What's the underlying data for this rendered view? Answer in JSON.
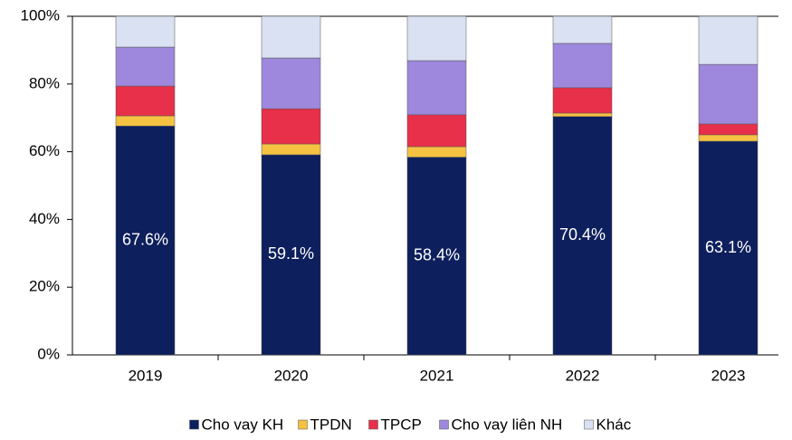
{
  "chart_data": {
    "type": "stacked_bar",
    "categories": [
      "2019",
      "2020",
      "2021",
      "2022",
      "2023"
    ],
    "series": [
      {
        "name": "Cho vay KH",
        "color": "#0d1f5c",
        "values": [
          67.6,
          59.1,
          58.4,
          70.4,
          63.1
        ],
        "value_labels": [
          "67.6%",
          "59.1%",
          "58.4%",
          "70.4%",
          "63.1%"
        ]
      },
      {
        "name": "TPDN",
        "color": "#f5c242",
        "values": [
          3.0,
          3.2,
          3.1,
          1.0,
          1.9
        ]
      },
      {
        "name": "TPCP",
        "color": "#e8304a",
        "values": [
          8.8,
          10.4,
          9.4,
          7.5,
          3.2
        ]
      },
      {
        "name": "Cho vay liên NH",
        "color": "#9e88dd",
        "values": [
          11.5,
          15.0,
          16.0,
          13.1,
          17.6
        ]
      },
      {
        "name": "Khác",
        "color": "#d9e1f2",
        "values": [
          9.1,
          12.3,
          13.1,
          8.0,
          14.2
        ]
      }
    ],
    "ylim": [
      0,
      100
    ],
    "yticks": [
      {
        "value": 0,
        "label": "0%"
      },
      {
        "value": 20,
        "label": "20%"
      },
      {
        "value": 40,
        "label": "40%"
      },
      {
        "value": 60,
        "label": "60%"
      },
      {
        "value": 80,
        "label": "80%"
      },
      {
        "value": 100,
        "label": "100%"
      }
    ]
  }
}
